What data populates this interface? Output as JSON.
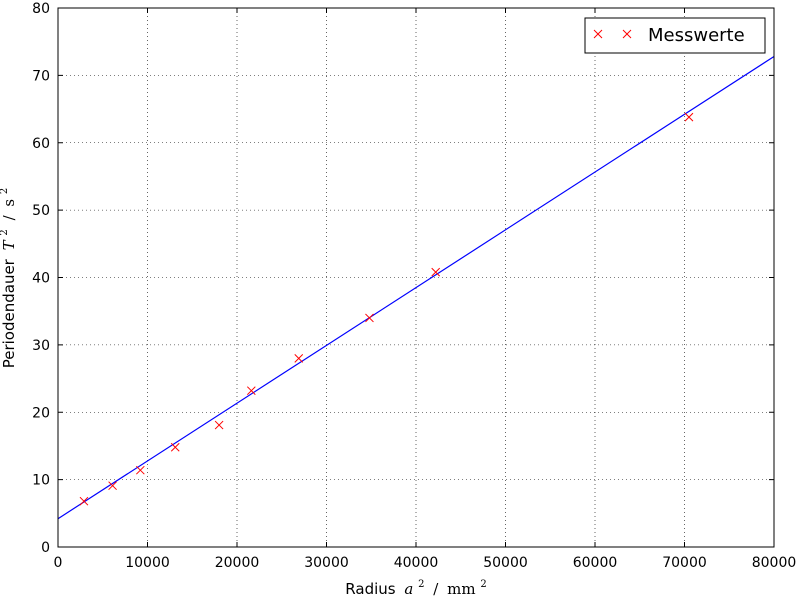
{
  "chart_data": {
    "type": "scatter",
    "title": "",
    "xlabel": {
      "prefix": "Radius",
      "symbol": "a",
      "exponent": "2",
      "separator": "/",
      "unit": "mm",
      "unit_exponent": "2"
    },
    "ylabel": {
      "prefix": "Periodendauer",
      "symbol": "T",
      "exponent": "2",
      "separator": "/",
      "unit": "s",
      "unit_exponent": "2"
    },
    "xlim": [
      0,
      80000
    ],
    "ylim": [
      0,
      80
    ],
    "xticks": [
      "0",
      "10000",
      "20000",
      "30000",
      "40000",
      "50000",
      "60000",
      "70000",
      "80000"
    ],
    "yticks": [
      "0",
      "10",
      "20",
      "30",
      "40",
      "50",
      "60",
      "70",
      "80"
    ],
    "grid": true,
    "legend": {
      "position": "top-right"
    },
    "series": [
      {
        "name": "Messwerte",
        "kind": "markers",
        "marker": "x",
        "color": "#ff0000",
        "x": [
          2900,
          6100,
          9200,
          13100,
          18000,
          21600,
          26900,
          34800,
          42200,
          70500
        ],
        "y": [
          6.8,
          9.1,
          11.4,
          14.8,
          18.1,
          23.2,
          28.0,
          34.0,
          40.8,
          63.8
        ]
      },
      {
        "kind": "fit-line",
        "color": "#0000ff",
        "x": [
          0,
          80000
        ],
        "y": [
          4.2,
          72.8
        ]
      }
    ]
  }
}
